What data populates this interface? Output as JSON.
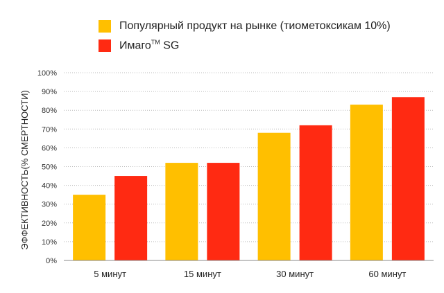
{
  "colors": {
    "product": "#ffbf00",
    "imago": "#ff2a12",
    "grid": "#bbbbbb",
    "axis": "#888888",
    "text": "#333333"
  },
  "chart_data": {
    "type": "bar",
    "title": "",
    "xlabel": "",
    "ylabel": "ЭФФЕКТИВНОСТЬ(% СМЕРТНОСТИ)",
    "ylim": [
      0,
      100
    ],
    "yticks": [
      "0%",
      "10%",
      "20%",
      "30%",
      "40%",
      "50%",
      "60%",
      "70%",
      "80%",
      "90%",
      "100%"
    ],
    "grid": true,
    "legend_position": "top",
    "categories": [
      "5  минут",
      "15  минут",
      "30 минут",
      "60  минут"
    ],
    "series": [
      {
        "name": "Популярный продукт на рынке (тиометоксикам 10%)",
        "values": [
          35,
          52,
          68,
          83
        ]
      },
      {
        "name_base": "Имаго",
        "name_sup": "TM",
        "name_suffix": " SG",
        "values": [
          45,
          52,
          72,
          87
        ]
      }
    ]
  }
}
